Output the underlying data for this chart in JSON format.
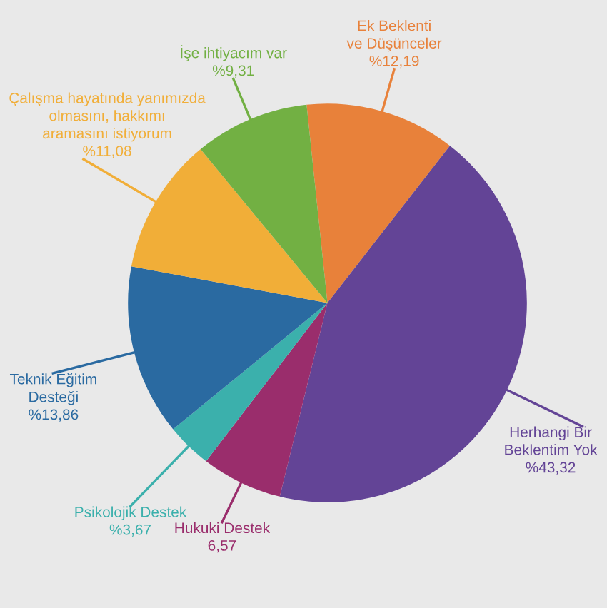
{
  "chart_data": {
    "type": "pie",
    "categories": [
      "Ek Beklenti\nve Düşünceler",
      "Herhangi Bir\nBeklentim Yok",
      "Hukuki Destek",
      "Psikolojik Destek",
      "Teknik Eğitim\nDesteği",
      "Çalışma hayatında yanımızda\nolmasını, hakkımı\naramasını istiyorum",
      "İşe ihtiyacım var"
    ],
    "values": [
      12.19,
      43.32,
      6.57,
      3.67,
      13.86,
      11.08,
      9.31
    ],
    "value_labels": [
      "%12,19",
      "%43,32",
      "6,57",
      "%3,67",
      "%13,86",
      "%11,08",
      "%9,31"
    ],
    "colors": [
      "#e8813a",
      "#634496",
      "#9a2d6c",
      "#3bb0ac",
      "#2a6aa1",
      "#f1ae38",
      "#72b043"
    ],
    "legend": false
  }
}
